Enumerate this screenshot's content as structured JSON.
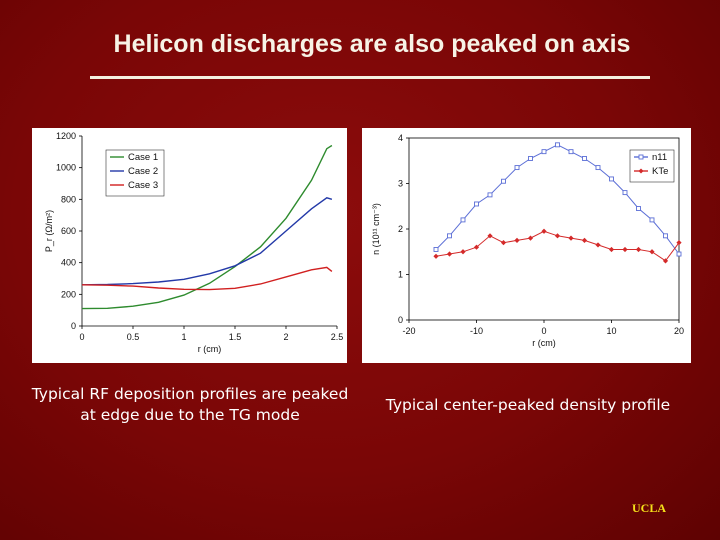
{
  "slide": {
    "title": "Helicon discharges are also peaked on axis",
    "caption_left": "Typical RF deposition profiles are peaked at edge due to the TG mode",
    "caption_right": "Typical center-peaked density profile",
    "logo": "UCLA"
  },
  "colors": {
    "background": "#7a0606",
    "title": "#f7f3e6",
    "logo": "#f5e11a"
  },
  "chart_data": [
    {
      "type": "line",
      "title": "",
      "xlabel": "r (cm)",
      "ylabel": "P_r (Ω/m²)",
      "xlim": [
        0,
        2.5
      ],
      "ylim": [
        0,
        1200
      ],
      "x_ticks": [
        "0",
        "0.5",
        "1",
        "1.5",
        "2",
        "2.5"
      ],
      "y_ticks": [
        "0",
        "200",
        "400",
        "600",
        "800",
        "1000",
        "1200"
      ],
      "legend_position": "top-left",
      "series": [
        {
          "name": "Case 1",
          "color": "#2e8b2e",
          "x": [
            0,
            0.25,
            0.5,
            0.75,
            1.0,
            1.25,
            1.5,
            1.75,
            2.0,
            2.25,
            2.4,
            2.45
          ],
          "y": [
            110,
            112,
            125,
            150,
            195,
            270,
            375,
            500,
            680,
            920,
            1120,
            1140
          ]
        },
        {
          "name": "Case 2",
          "color": "#2339a8",
          "x": [
            0,
            0.25,
            0.5,
            0.75,
            1.0,
            1.25,
            1.5,
            1.75,
            2.0,
            2.25,
            2.4,
            2.45
          ],
          "y": [
            260,
            262,
            268,
            278,
            295,
            330,
            380,
            460,
            600,
            740,
            810,
            800
          ]
        },
        {
          "name": "Case 3",
          "color": "#d12020",
          "x": [
            0,
            0.25,
            0.5,
            0.75,
            1.0,
            1.25,
            1.5,
            1.75,
            2.0,
            2.25,
            2.4,
            2.45
          ],
          "y": [
            260,
            258,
            252,
            240,
            232,
            230,
            238,
            265,
            310,
            355,
            370,
            345
          ]
        }
      ]
    },
    {
      "type": "line",
      "title": "",
      "xlabel": "r (cm)",
      "ylabel": "n (10¹¹ cm⁻³)",
      "xlim": [
        -20,
        20
      ],
      "ylim": [
        0,
        4
      ],
      "x_ticks": [
        "-20",
        "-10",
        "0",
        "10",
        "20"
      ],
      "y_ticks": [
        "0",
        "1",
        "2",
        "3",
        "4"
      ],
      "legend_position": "top-right",
      "series": [
        {
          "name": "n11",
          "color": "#5b6ed6",
          "marker": "square",
          "x": [
            -16,
            -14,
            -12,
            -10,
            -8,
            -6,
            -4,
            -2,
            0,
            2,
            4,
            6,
            8,
            10,
            12,
            14,
            16,
            18,
            20
          ],
          "y": [
            1.55,
            1.85,
            2.2,
            2.55,
            2.75,
            3.05,
            3.35,
            3.55,
            3.7,
            3.85,
            3.7,
            3.55,
            3.35,
            3.1,
            2.8,
            2.45,
            2.2,
            1.85,
            1.45
          ]
        },
        {
          "name": "KTe",
          "color": "#d42a2a",
          "marker": "diamond",
          "x": [
            -16,
            -14,
            -12,
            -10,
            -8,
            -6,
            -4,
            -2,
            0,
            2,
            4,
            6,
            8,
            10,
            12,
            14,
            16,
            18,
            20
          ],
          "y": [
            1.4,
            1.45,
            1.5,
            1.6,
            1.85,
            1.7,
            1.75,
            1.8,
            1.95,
            1.85,
            1.8,
            1.75,
            1.65,
            1.55,
            1.55,
            1.55,
            1.5,
            1.3,
            1.7
          ]
        }
      ]
    }
  ]
}
